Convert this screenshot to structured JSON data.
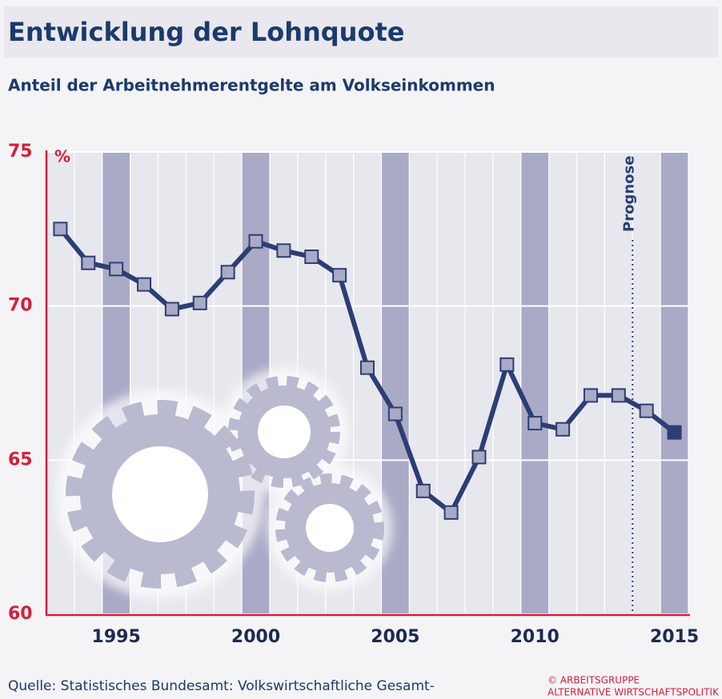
{
  "chart_data": {
    "type": "line",
    "title": "Entwicklung der Lohnquote",
    "subtitle": "Anteil der Arbeitnehmerentgelte am Volkseinkommen",
    "y_unit": "%",
    "annotation": "Prognose",
    "x": [
      1993,
      1994,
      1995,
      1996,
      1997,
      1998,
      1999,
      2000,
      2001,
      2002,
      2003,
      2004,
      2005,
      2006,
      2007,
      2008,
      2009,
      2010,
      2011,
      2012,
      2013,
      2014,
      2015
    ],
    "values": [
      72.5,
      71.4,
      71.2,
      70.7,
      69.9,
      70.1,
      71.1,
      72.1,
      71.8,
      71.6,
      71.0,
      68.0,
      66.5,
      64.0,
      63.3,
      65.1,
      68.1,
      66.2,
      66.0,
      67.1,
      67.1,
      66.6,
      65.9
    ],
    "color": "#2c3e74",
    "xlim": [
      1992.5,
      2015.5
    ],
    "xticks": [
      1995,
      2000,
      2005,
      2010,
      2015
    ],
    "ylim": [
      60,
      75
    ],
    "yticks": [
      60,
      65,
      70,
      75
    ],
    "grid": true,
    "source": "Quelle:  Statistisches Bundesamt: Volkswirtschaftliche Gesamt-",
    "copyright": [
      "© ARBEITSGRUPPE",
      "ALTERNATIVE WIRTSCHAFTSPOLITIK"
    ]
  }
}
